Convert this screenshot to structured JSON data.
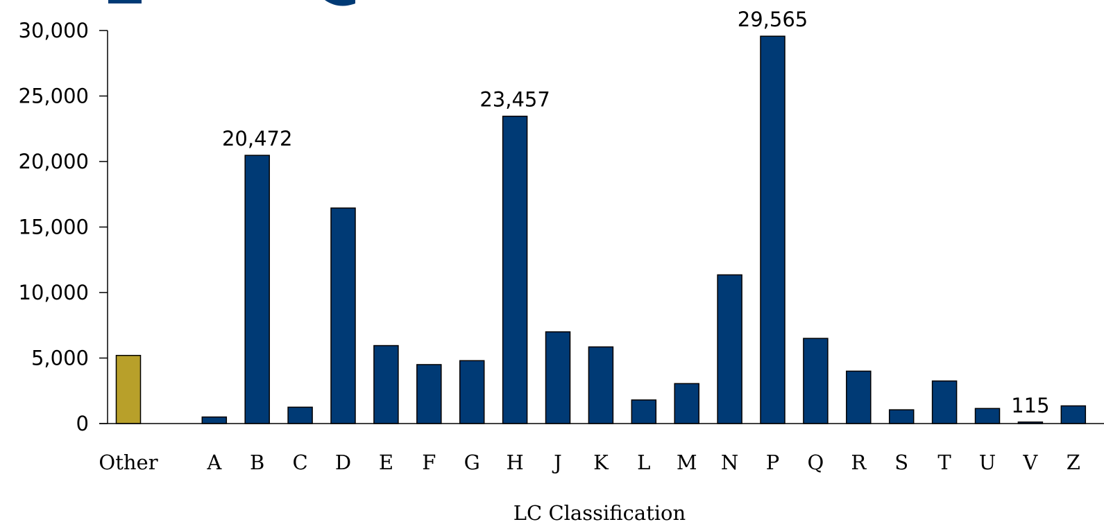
{
  "chart_data": {
    "type": "bar",
    "categories": [
      "Other",
      "",
      "A",
      "B",
      "C",
      "D",
      "E",
      "F",
      "G",
      "H",
      "J",
      "K",
      "L",
      "M",
      "N",
      "P",
      "Q",
      "R",
      "S",
      "T",
      "U",
      "V",
      "Z"
    ],
    "values": [
      5200,
      0,
      500,
      20472,
      1250,
      16450,
      5950,
      4500,
      4800,
      23457,
      7000,
      5850,
      1800,
      3050,
      11350,
      29565,
      6500,
      4000,
      1050,
      3250,
      1150,
      115,
      1350
    ],
    "highlight_category": "Other",
    "colors": {
      "default_bar": "#003a75",
      "highlight_bar": "#b8a02a"
    },
    "data_labels": [
      {
        "category": "B",
        "text": "20,472"
      },
      {
        "category": "H",
        "text": "23,457"
      },
      {
        "category": "P",
        "text": "29,565"
      },
      {
        "category": "V",
        "text": "115"
      }
    ],
    "y_ticks": [
      "0",
      "5,000",
      "10,000",
      "15,000",
      "20,000",
      "25,000",
      "30,000"
    ],
    "ylim": [
      0,
      30000
    ],
    "title": "",
    "xlabel": "LC Classification",
    "ylabel": "",
    "grid": false,
    "legend": "none"
  }
}
